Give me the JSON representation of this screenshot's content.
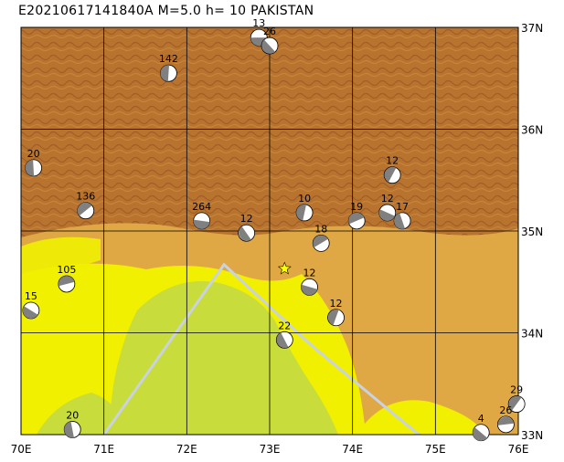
{
  "title": "E20210617141840A M=5.0 h= 10 PAKISTAN",
  "lon_labels": [
    "70E",
    "71E",
    "72E",
    "73E",
    "74E",
    "75E",
    "76E"
  ],
  "lat_labels": [
    "37N",
    "36N",
    "35N",
    "34N",
    "33N"
  ],
  "extent": {
    "lon": [
      70,
      76
    ],
    "lat": [
      33,
      37
    ]
  },
  "grid": true,
  "colors": {
    "mountain_dark": "#9b5a28",
    "mountain_mid": "#c9822f",
    "mountain_light": "#d9a14a",
    "foothill": "#e6b040",
    "plain_yellow": "#f0f000",
    "plain_green": "#c8dc3c",
    "border_line": "#c8d2e0",
    "epicenter_star": "#ffff00",
    "mechanism_fill": "#808080"
  },
  "border_polyline": [
    [
      71.0,
      33.0
    ],
    [
      72.45,
      34.67
    ],
    [
      73.5,
      33.88
    ],
    [
      74.5,
      33.2
    ],
    [
      74.8,
      33.0
    ]
  ],
  "epicenter": {
    "lon": 73.18,
    "lat": 34.63
  },
  "events": [
    {
      "label": "13",
      "lon": 72.87,
      "lat": 36.9
    },
    {
      "label": "26",
      "lon": 73.0,
      "lat": 36.82
    },
    {
      "label": "142",
      "lon": 71.78,
      "lat": 36.55
    },
    {
      "label": "136",
      "lon": 70.78,
      "lat": 35.2
    },
    {
      "label": "264",
      "lon": 72.18,
      "lat": 35.1
    },
    {
      "label": "12",
      "lon": 72.72,
      "lat": 34.98
    },
    {
      "label": "10",
      "lon": 73.42,
      "lat": 35.18
    },
    {
      "label": "18",
      "lon": 73.62,
      "lat": 34.88
    },
    {
      "label": "12",
      "lon": 73.48,
      "lat": 34.45
    },
    {
      "label": "22",
      "lon": 73.18,
      "lat": 33.93
    },
    {
      "label": "12",
      "lon": 73.8,
      "lat": 34.15
    },
    {
      "label": "19",
      "lon": 74.05,
      "lat": 35.1
    },
    {
      "label": "12",
      "lon": 74.42,
      "lat": 35.18
    },
    {
      "label": "17",
      "lon": 74.6,
      "lat": 35.1
    },
    {
      "label": "12",
      "lon": 74.48,
      "lat": 35.55
    },
    {
      "label": "105",
      "lon": 70.55,
      "lat": 34.48
    },
    {
      "label": "15",
      "lon": 70.12,
      "lat": 34.22
    },
    {
      "label": "20",
      "lon": 70.62,
      "lat": 33.05
    },
    {
      "label": "29",
      "lon": 75.98,
      "lat": 33.3
    },
    {
      "label": "26",
      "lon": 75.85,
      "lat": 33.1
    },
    {
      "label": "4",
      "lon": 75.55,
      "lat": 33.02
    },
    {
      "label": "20",
      "lon": 70.15,
      "lat": 35.62
    }
  ]
}
